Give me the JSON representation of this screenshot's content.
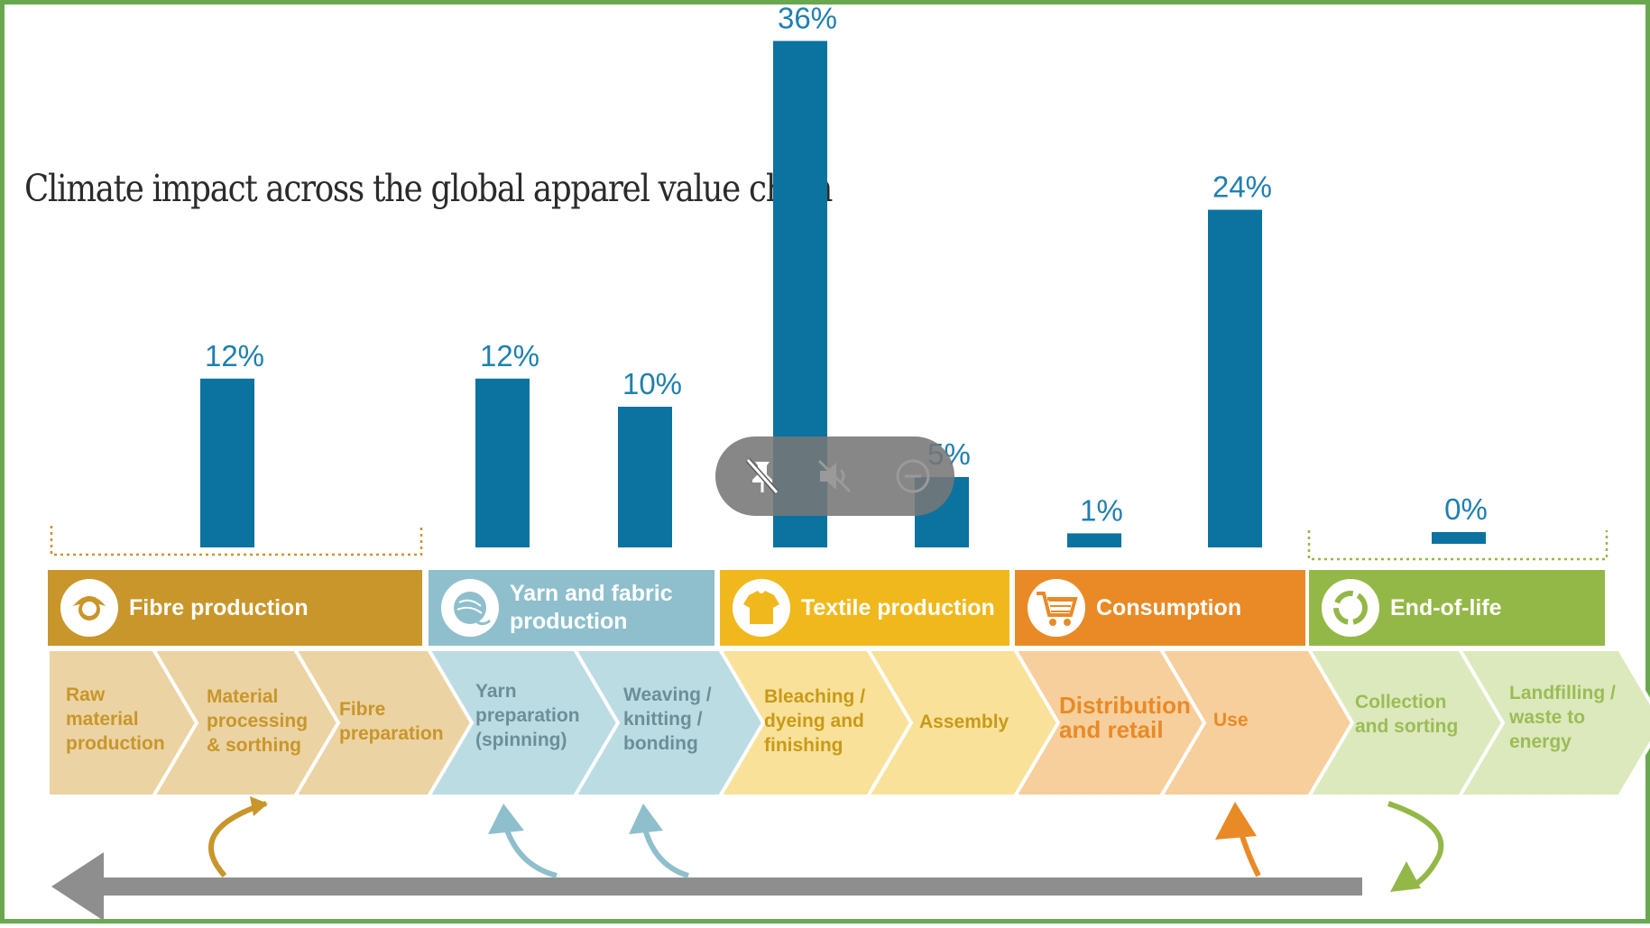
{
  "chart_data": {
    "type": "bar",
    "title": "Climate impact across the global apparel value chain",
    "unit": "%",
    "categories": [
      "Raw material production, Material processing & sorthing, Fibre preparation",
      "Yarn preparation (spinning)",
      "Weaving / knitting / bonding",
      "Bleaching / dyeing and finishing",
      "Assembly",
      "Distribution and retail",
      "Use",
      "Collection and sorting, Landfilling / waste to energy"
    ],
    "values": [
      12,
      12,
      10,
      36,
      5,
      1,
      24,
      0
    ],
    "data_labels": [
      "12%",
      "12%",
      "10%",
      "36%",
      "5%",
      "1%",
      "24%",
      "0%"
    ],
    "bar_color": "#0c72a0",
    "ylim": [
      0,
      36
    ]
  },
  "stages": [
    {
      "name": "Fibre production",
      "color": "#c8962a",
      "icon": "cotton-flower-icon",
      "steps": [
        "Raw material production",
        "Material processing & sorthing",
        "Fibre preparation"
      ],
      "step_color": "#ecd3a3",
      "step_text_color": "#c8962a"
    },
    {
      "name": "Yarn and fabric production",
      "color": "#8fbfcc",
      "icon": "yarn-ball-icon",
      "steps": [
        "Yarn preparation (spinning)",
        "Weaving / knitting / bonding"
      ],
      "step_color": "#bcdce3",
      "step_text_color": "#6b8f99"
    },
    {
      "name": "Textile production",
      "color": "#f0b81c",
      "icon": "t-shirt-icon",
      "steps": [
        "Bleaching / dyeing and finishing",
        "Assembly"
      ],
      "step_color": "#f9e19a",
      "step_text_color": "#c89a16"
    },
    {
      "name": "Consumption",
      "color": "#e98a27",
      "icon": "shopping-cart-icon",
      "steps": [
        "Distribution and retail",
        "Use"
      ],
      "step_color": "#f6cf9c",
      "step_text_color": "#e98a27"
    },
    {
      "name": "End-of-life",
      "color": "#94b847",
      "icon": "recycle-icon",
      "steps": [
        "Collection and sorting",
        "Landfilling / waste to energy"
      ],
      "step_color": "#dce9bd",
      "step_text_color": "#9cbc55"
    }
  ],
  "overlay_controls": [
    {
      "name": "unpin-icon"
    },
    {
      "name": "mute-icon"
    },
    {
      "name": "zoom-out-icon"
    }
  ]
}
